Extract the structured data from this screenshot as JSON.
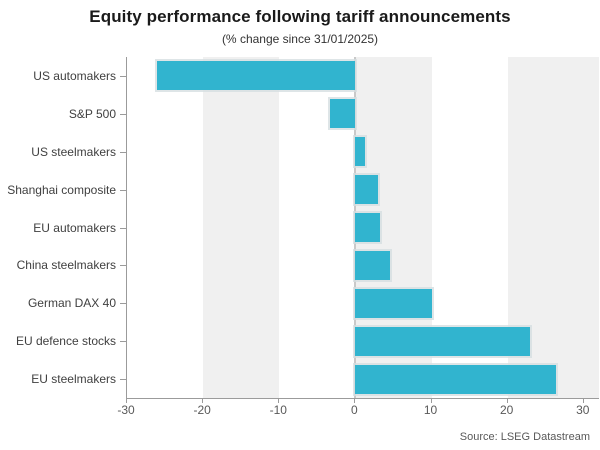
{
  "chart_data": {
    "type": "bar",
    "orientation": "horizontal",
    "title": "Equity performance following tariff announcements",
    "subtitle": "(% change since 31/01/2025)",
    "categories": [
      "US automakers",
      "S&P 500",
      "US steelmakers",
      "Shanghai composite",
      "EU automakers",
      "China steelmakers",
      "German DAX 40",
      "EU defence stocks",
      "EU steelmakers"
    ],
    "values": [
      -26,
      -3.3,
      1.3,
      3,
      3.3,
      4.5,
      10,
      23,
      26.3
    ],
    "xlabel": "",
    "ylabel": "",
    "xticks": [
      -30,
      -20,
      -10,
      0,
      10,
      20,
      30
    ],
    "xlim": [
      -30,
      32
    ],
    "grid": "off",
    "legend": "none",
    "shaded_bands": [
      [
        -20,
        -10
      ],
      [
        0,
        10
      ],
      [
        20,
        32
      ]
    ],
    "source_note": "Source: LSEG Datastream",
    "colors": {
      "bar": "#31b4cf",
      "band": "#f0f0f0",
      "axis": "#9b9b9b",
      "zero_line": "#c9c9c9",
      "title_text": "#1a1a1a",
      "label_text": "#404040",
      "tick_text": "#595959"
    }
  }
}
